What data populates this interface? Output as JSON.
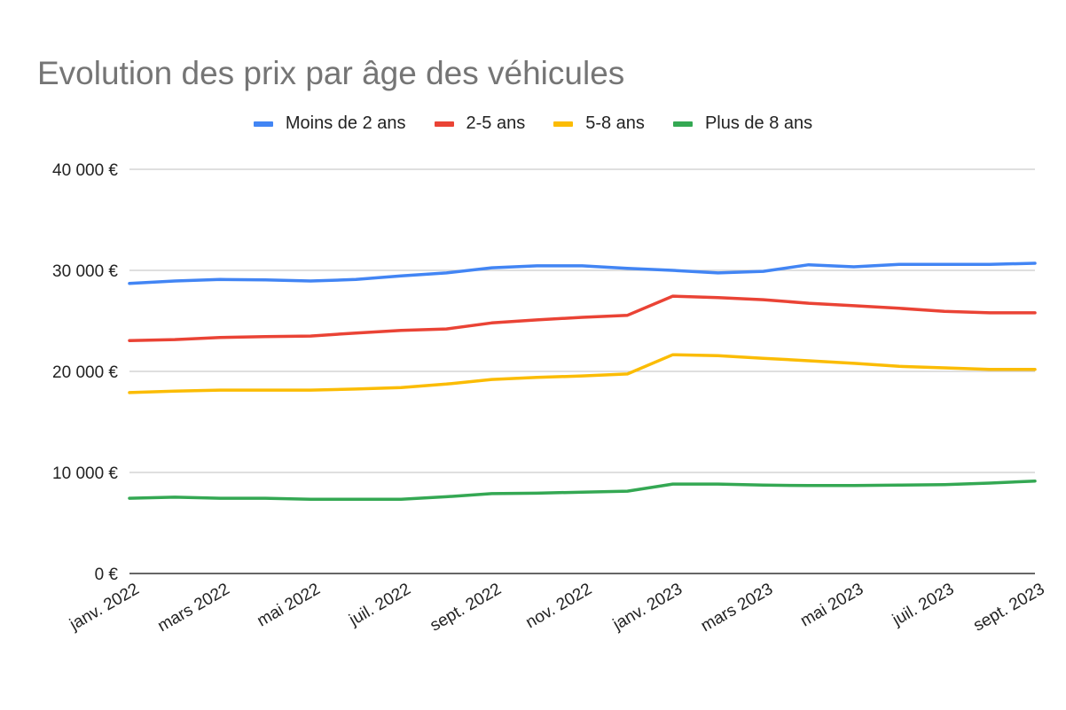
{
  "chart_data": {
    "type": "line",
    "title": "Evolution des prix par âge des véhicules",
    "xlabel": "",
    "ylabel": "",
    "ylim": [
      0,
      40000
    ],
    "yticks": [
      0,
      10000,
      20000,
      30000,
      40000
    ],
    "ytick_labels": [
      "0 €",
      "10 000 €",
      "20 000 €",
      "30 000 €",
      "40 000 €"
    ],
    "grid": true,
    "legend_position": "top",
    "x": [
      "janv. 2022",
      "févr. 2022",
      "mars 2022",
      "avr. 2022",
      "mai 2022",
      "juin 2022",
      "juil. 2022",
      "août 2022",
      "sept. 2022",
      "oct. 2022",
      "nov. 2022",
      "déc. 2022",
      "janv. 2023",
      "févr. 2023",
      "mars 2023",
      "avr. 2023",
      "mai 2023",
      "juin 2023",
      "juil. 2023",
      "août 2023",
      "sept. 2023"
    ],
    "xtick_labels": [
      "janv. 2022",
      "mars 2022",
      "mai 2022",
      "juil. 2022",
      "sept. 2022",
      "nov. 2022",
      "janv. 2023",
      "mars 2023",
      "mai 2023",
      "juil. 2023",
      "sept. 2023"
    ],
    "series": [
      {
        "name": "Moins de 2 ans",
        "color": "#4285f4",
        "values": [
          28700,
          28950,
          29100,
          29050,
          28950,
          29100,
          29450,
          29750,
          30250,
          30450,
          30450,
          30200,
          30000,
          29750,
          29900,
          30550,
          30350,
          30600,
          30600,
          30600,
          30700
        ]
      },
      {
        "name": "2-5 ans",
        "color": "#ea4335",
        "values": [
          23050,
          23150,
          23350,
          23450,
          23500,
          23800,
          24050,
          24200,
          24800,
          25100,
          25350,
          25550,
          27450,
          27300,
          27100,
          26750,
          26500,
          26250,
          25950,
          25800,
          25800
        ]
      },
      {
        "name": "5-8 ans",
        "color": "#fbbc04",
        "values": [
          17900,
          18050,
          18150,
          18150,
          18150,
          18250,
          18400,
          18750,
          19200,
          19400,
          19550,
          19750,
          21650,
          21550,
          21300,
          21050,
          20800,
          20500,
          20350,
          20200,
          20200
        ]
      },
      {
        "name": "Plus de 8 ans",
        "color": "#34a853",
        "values": [
          7450,
          7550,
          7450,
          7450,
          7350,
          7350,
          7350,
          7600,
          7900,
          7950,
          8050,
          8150,
          8850,
          8850,
          8750,
          8700,
          8700,
          8750,
          8800,
          8950,
          9150
        ]
      }
    ]
  }
}
